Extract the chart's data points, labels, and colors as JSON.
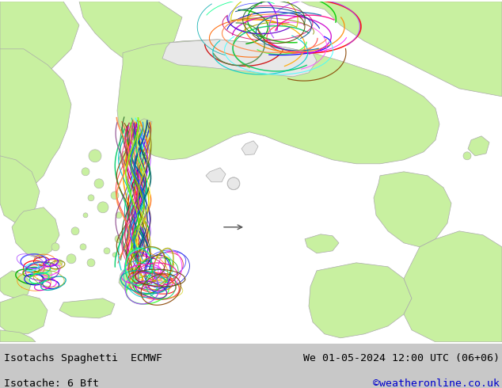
{
  "title_left_line1": "Isotachs Spaghetti  ECMWF",
  "title_left_line2": "Isotache: 6 Bft",
  "title_right_line1": "We 01-05-2024 12:00 UTC (06+06)",
  "title_right_line2": "©weatheronline.co.uk",
  "title_right_line2_color": "#0000cc",
  "land_color": "#c8f0a0",
  "sea_color": "#e8e8e8",
  "border_color": "#aaaaaa",
  "footer_bg_color": "#c8c8c8",
  "footer_text_color": "#000000",
  "fig_width": 6.34,
  "fig_height": 4.9,
  "dpi": 100
}
